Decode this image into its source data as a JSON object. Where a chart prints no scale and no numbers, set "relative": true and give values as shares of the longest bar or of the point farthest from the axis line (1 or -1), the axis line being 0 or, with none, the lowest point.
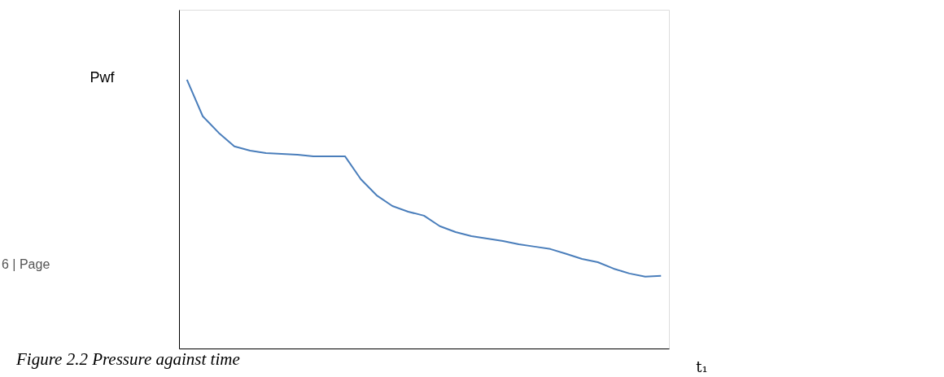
{
  "chart_data": {
    "type": "line",
    "relative": true,
    "ylabel": "Pwf",
    "xlabel": "t₁",
    "categories": [
      null,
      null,
      null,
      null,
      null,
      null,
      null,
      null,
      null,
      null,
      null,
      null,
      null,
      null,
      null,
      null,
      null,
      null,
      null,
      null,
      null,
      null,
      null,
      null,
      null,
      null,
      null,
      null,
      null,
      null,
      null
    ],
    "series": [
      {
        "color": "#4a7ebb",
        "values": [
          1.0,
          0.864,
          0.803,
          0.752,
          0.736,
          0.727,
          0.724,
          0.721,
          0.715,
          0.715,
          0.715,
          0.63,
          0.57,
          0.53,
          0.509,
          0.494,
          0.455,
          0.433,
          0.418,
          0.409,
          0.4,
          0.388,
          0.379,
          0.37,
          0.352,
          0.333,
          0.321,
          0.297,
          0.279,
          0.267,
          0.27
        ]
      }
    ],
    "annotations": [
      "Figure 2.2 Pressure against time",
      "6 | Page"
    ],
    "grid": false,
    "marker": "none",
    "line_style": "solid"
  }
}
